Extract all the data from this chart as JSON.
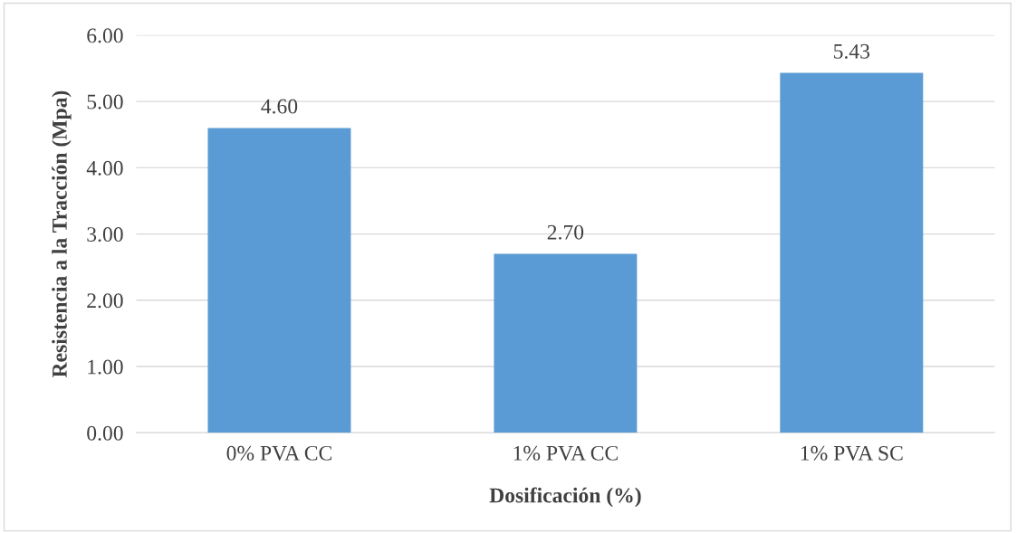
{
  "chart_data": {
    "type": "bar",
    "xlabel": "Dosificación (%)",
    "ylabel": "Resistencia a la Tracción (Mpa)",
    "categories": [
      "0% PVA CC",
      "1% PVA CC",
      "1% PVA SC"
    ],
    "values": [
      4.6,
      2.7,
      5.43
    ],
    "value_labels": [
      "4.60",
      "2.70",
      "5.43"
    ],
    "color": "#5b9bd5",
    "ylim": [
      0,
      6
    ],
    "yticks": [
      {
        "value": 0,
        "label": "0.00"
      },
      {
        "value": 1,
        "label": "1.00"
      },
      {
        "value": 2,
        "label": "2.00"
      },
      {
        "value": 3,
        "label": "3.00"
      },
      {
        "value": 4,
        "label": "4.00"
      },
      {
        "value": 5,
        "label": "5.00"
      },
      {
        "value": 6,
        "label": "6.00"
      }
    ],
    "grid": "y"
  }
}
